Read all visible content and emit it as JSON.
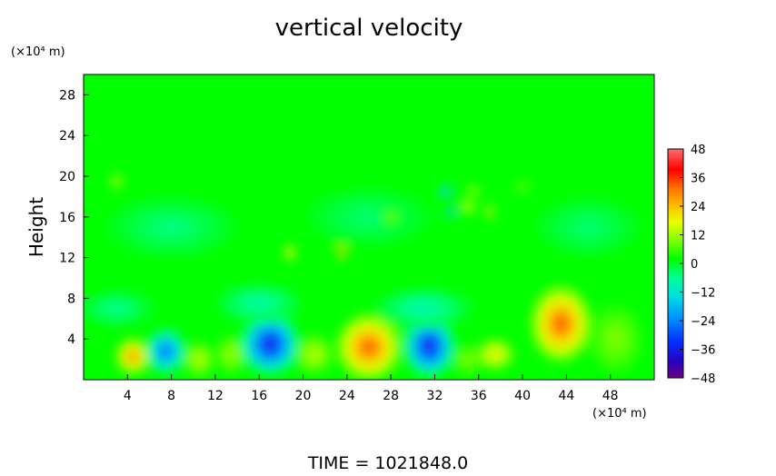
{
  "chart_data": {
    "type": "heatmap",
    "title": "vertical velocity",
    "ylabel": "Height",
    "xlabel": "",
    "x_unit": "(×10⁴ m)",
    "y_unit": "(×10⁴ m)",
    "xlim": [
      0,
      52
    ],
    "ylim": [
      0,
      30
    ],
    "x_ticks": [
      4,
      8,
      12,
      16,
      20,
      24,
      28,
      32,
      36,
      40,
      44,
      48
    ],
    "y_ticks": [
      4,
      8,
      12,
      16,
      20,
      24,
      28
    ],
    "x_tick_labels": [
      "4",
      "8",
      "12",
      "16",
      "20",
      "24",
      "28",
      "32",
      "36",
      "40",
      "44",
      "48"
    ],
    "y_tick_labels": [
      "4",
      "8",
      "12",
      "16",
      "20",
      "24",
      "28"
    ],
    "colorbar": {
      "min": -48,
      "max": 48,
      "ticks": [
        48,
        36,
        24,
        12,
        0,
        -12,
        -24,
        -36,
        -48
      ],
      "tick_labels": [
        "48",
        "36",
        "24",
        "12",
        "0",
        "−12",
        "−24",
        "−36",
        "−48"
      ]
    },
    "background_value": 2,
    "features": [
      {
        "x": 4.5,
        "y": 2.3,
        "rx": 1.6,
        "ry": 1.8,
        "value": 30
      },
      {
        "x": 7.5,
        "y": 2.8,
        "rx": 1.8,
        "ry": 2.2,
        "value": -28
      },
      {
        "x": 10.5,
        "y": 2.0,
        "rx": 1.5,
        "ry": 1.8,
        "value": 14
      },
      {
        "x": 13.5,
        "y": 2.5,
        "rx": 1.5,
        "ry": 2.0,
        "value": 12
      },
      {
        "x": 17.0,
        "y": 3.5,
        "rx": 2.6,
        "ry": 3.0,
        "value": -38
      },
      {
        "x": 21.0,
        "y": 2.5,
        "rx": 1.8,
        "ry": 2.0,
        "value": 14
      },
      {
        "x": 26.0,
        "y": 3.2,
        "rx": 3.0,
        "ry": 3.3,
        "value": 34
      },
      {
        "x": 31.5,
        "y": 3.3,
        "rx": 2.3,
        "ry": 3.0,
        "value": -38
      },
      {
        "x": 35.0,
        "y": 2.0,
        "rx": 1.5,
        "ry": 1.6,
        "value": 10
      },
      {
        "x": 37.5,
        "y": 2.5,
        "rx": 1.8,
        "ry": 1.6,
        "value": 20
      },
      {
        "x": 43.5,
        "y": 5.5,
        "rx": 2.8,
        "ry": 3.8,
        "value": 34
      },
      {
        "x": 48.5,
        "y": 4.0,
        "rx": 2.5,
        "ry": 3.5,
        "value": 10
      },
      {
        "x": 3.0,
        "y": 7.0,
        "rx": 3.5,
        "ry": 1.8,
        "value": -6
      },
      {
        "x": 16.0,
        "y": 7.5,
        "rx": 4.0,
        "ry": 2.0,
        "value": -8
      },
      {
        "x": 31.0,
        "y": 7.0,
        "rx": 4.5,
        "ry": 2.0,
        "value": -9
      },
      {
        "x": 8.0,
        "y": 15.0,
        "rx": 6.0,
        "ry": 3.0,
        "value": -5
      },
      {
        "x": 26.0,
        "y": 16.0,
        "rx": 6.0,
        "ry": 3.0,
        "value": -4
      },
      {
        "x": 46.0,
        "y": 15.0,
        "rx": 5.0,
        "ry": 3.0,
        "value": -4
      },
      {
        "x": 18.8,
        "y": 12.5,
        "rx": 0.5,
        "ry": 0.8,
        "value": 26
      },
      {
        "x": 23.5,
        "y": 12.5,
        "rx": 0.35,
        "ry": 0.8,
        "value": 40
      },
      {
        "x": 33.0,
        "y": 18.5,
        "rx": 0.6,
        "ry": 0.6,
        "value": -28
      },
      {
        "x": 33.5,
        "y": 16.5,
        "rx": 0.4,
        "ry": 0.6,
        "value": -28
      },
      {
        "x": 35.0,
        "y": 17.0,
        "rx": 0.7,
        "ry": 0.7,
        "value": 20
      },
      {
        "x": 37.0,
        "y": 16.5,
        "rx": 0.35,
        "ry": 0.7,
        "value": 30
      },
      {
        "x": 35.5,
        "y": 18.5,
        "rx": 0.6,
        "ry": 0.7,
        "value": 14
      },
      {
        "x": 3.0,
        "y": 19.5,
        "rx": 0.8,
        "ry": 0.8,
        "value": 12
      },
      {
        "x": 28.0,
        "y": 16.0,
        "rx": 0.9,
        "ry": 0.8,
        "value": 9
      },
      {
        "x": 40.0,
        "y": 19.0,
        "rx": 0.8,
        "ry": 0.7,
        "value": 8
      }
    ]
  },
  "footer": {
    "time_text": "TIME  =  1021848.0"
  }
}
